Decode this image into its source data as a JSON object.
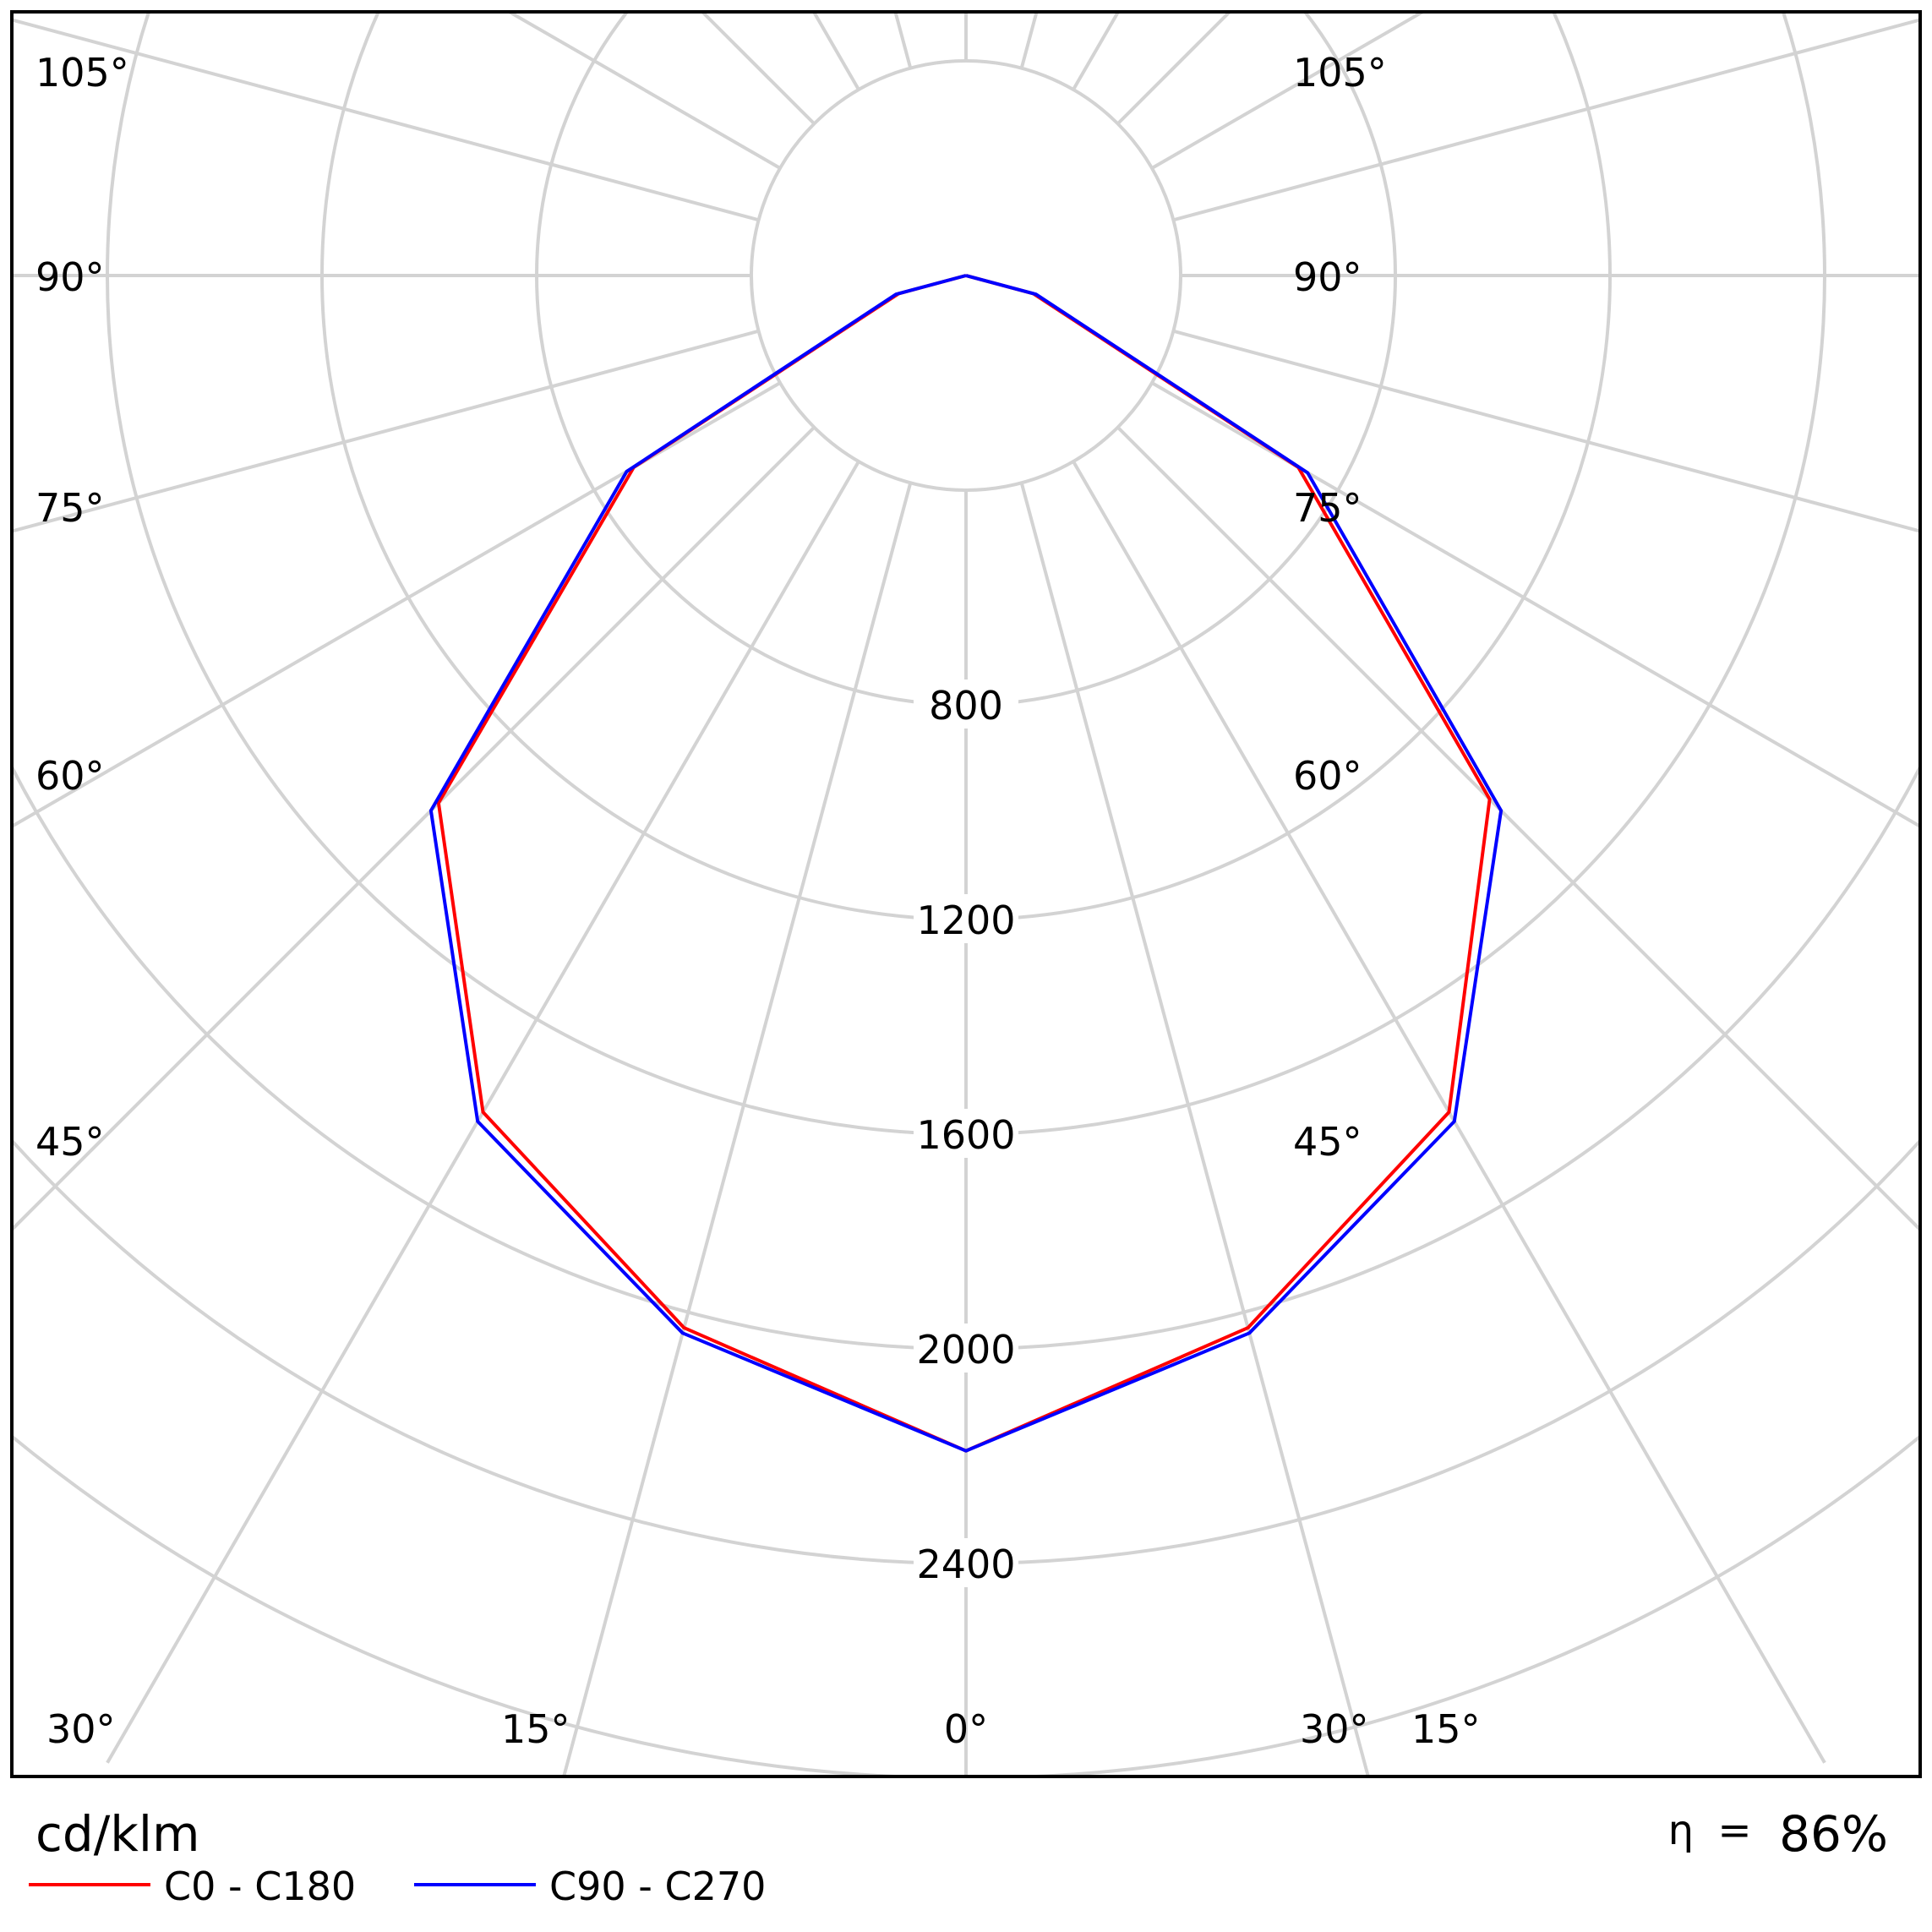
{
  "chart_data": {
    "type": "polar",
    "unit": "cd/klm",
    "efficiency": {
      "symbol": "η",
      "operator": "=",
      "value": "86%"
    },
    "radial_ticks": [
      800,
      1200,
      1600,
      2000,
      2400
    ],
    "radial_max": 2800,
    "angle_labels": {
      "left": [
        "105°",
        "90°",
        "75°",
        "60°",
        "45°",
        "30°",
        "15°"
      ],
      "right": [
        "105°",
        "90°",
        "75°",
        "60°",
        "45°",
        "30°",
        "15°"
      ],
      "center": "0°"
    },
    "angle_values": {
      "side": [
        105,
        90,
        75,
        60,
        45,
        30,
        15
      ],
      "center": 0
    },
    "series": [
      {
        "name": "C0 - C180",
        "color": "#ff0000",
        "gamma": [
          0,
          15,
          30,
          45,
          60,
          75,
          90
        ],
        "left": [
          2190,
          2030,
          1800,
          1390,
          715,
          130,
          0
        ],
        "right": [
          2190,
          2030,
          1800,
          1380,
          715,
          130,
          0
        ]
      },
      {
        "name": "C90 - C270",
        "color": "#0000ff",
        "gamma": [
          0,
          15,
          30,
          45,
          60,
          75,
          90
        ],
        "left": [
          2190,
          2040,
          1820,
          1410,
          730,
          135,
          0
        ],
        "right": [
          2190,
          2040,
          1820,
          1410,
          735,
          135,
          0
        ]
      }
    ]
  }
}
